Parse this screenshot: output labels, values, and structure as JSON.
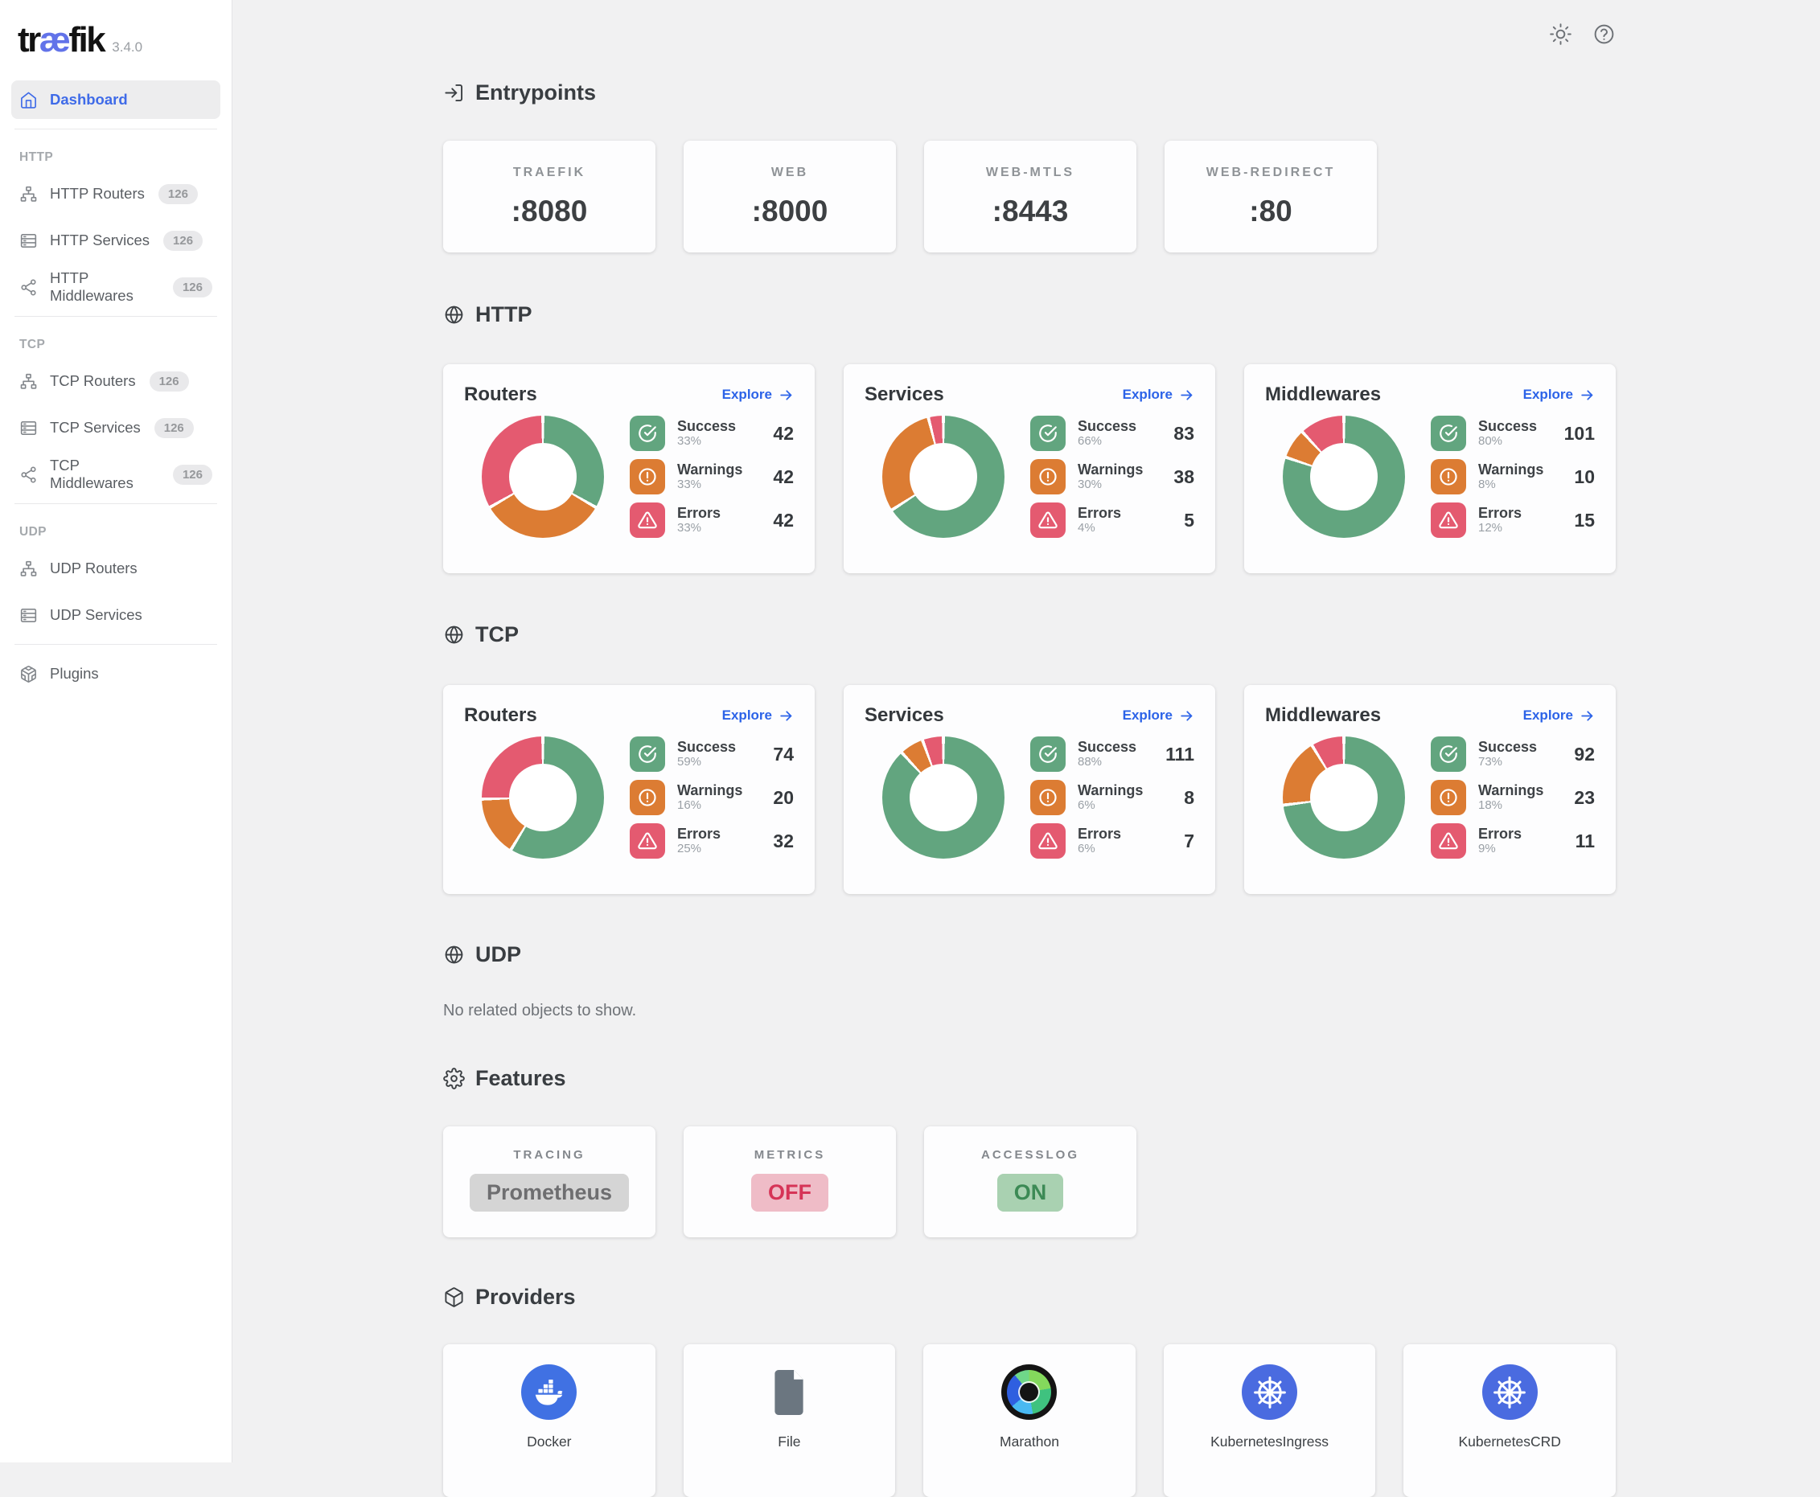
{
  "app": {
    "logo_pre": "tr",
    "logo_ae": "æ",
    "logo_post": "fik",
    "version": "3.4.0"
  },
  "topbar": {
    "theme_icon": "sun-icon",
    "help_icon": "help-icon"
  },
  "labels": {
    "explore": "Explore"
  },
  "sidebar": {
    "dashboard_label": "Dashboard",
    "plugins_label": "Plugins",
    "sections": [
      {
        "label": "HTTP",
        "items": [
          {
            "id": "http-routers",
            "icon": "routers",
            "label": "HTTP Routers",
            "badge": "126"
          },
          {
            "id": "http-services",
            "icon": "services",
            "label": "HTTP Services",
            "badge": "126"
          },
          {
            "id": "http-middlewares",
            "icon": "middlewares",
            "label": "HTTP Middlewares",
            "badge": "126"
          }
        ]
      },
      {
        "label": "TCP",
        "items": [
          {
            "id": "tcp-routers",
            "icon": "routers",
            "label": "TCP Routers",
            "badge": "126"
          },
          {
            "id": "tcp-services",
            "icon": "services",
            "label": "TCP Services",
            "badge": "126"
          },
          {
            "id": "tcp-middlewares",
            "icon": "middlewares",
            "label": "TCP Middlewares",
            "badge": "126"
          }
        ]
      },
      {
        "label": "UDP",
        "items": [
          {
            "id": "udp-routers",
            "icon": "routers",
            "label": "UDP Routers",
            "badge": ""
          },
          {
            "id": "udp-services",
            "icon": "services",
            "label": "UDP Services",
            "badge": ""
          }
        ]
      }
    ]
  },
  "entrypoints": {
    "title": "Entrypoints",
    "cards": [
      {
        "label": "TRAEFIK",
        "port": ":8080"
      },
      {
        "label": "WEB",
        "port": ":8000"
      },
      {
        "label": "WEB-MTLS",
        "port": ":8443"
      },
      {
        "label": "WEB-REDIRECT",
        "port": ":80"
      }
    ]
  },
  "http_section": {
    "title": "HTTP",
    "cards": [
      {
        "title": "Routers",
        "chart": 0
      },
      {
        "title": "Services",
        "chart": 1
      },
      {
        "title": "Middlewares",
        "chart": 2
      }
    ]
  },
  "tcp_section": {
    "title": "TCP",
    "cards": [
      {
        "title": "Routers",
        "chart": 3
      },
      {
        "title": "Services",
        "chart": 4
      },
      {
        "title": "Middlewares",
        "chart": 5
      }
    ]
  },
  "udp_section": {
    "title": "UDP",
    "empty": "No related objects to show."
  },
  "features": {
    "title": "Features",
    "cards": [
      {
        "label": "TRACING",
        "value": "Prometheus",
        "state": "neutral"
      },
      {
        "label": "METRICS",
        "value": "OFF",
        "state": "off"
      },
      {
        "label": "ACCESSLOG",
        "value": "ON",
        "state": "on"
      }
    ]
  },
  "providers": {
    "title": "Providers",
    "cards": [
      {
        "label": "Docker",
        "icon": "docker"
      },
      {
        "label": "File",
        "icon": "file"
      },
      {
        "label": "Marathon",
        "icon": "marathon"
      },
      {
        "label": "KubernetesIngress",
        "icon": "kubernetes"
      },
      {
        "label": "KubernetesCRD",
        "icon": "kubernetes"
      }
    ]
  },
  "colors": {
    "success": "#62a57f",
    "warning": "#dc7c33",
    "error": "#e45a70",
    "accent_blue": "#2c63e8",
    "logo_blue": "#6273e9"
  },
  "chart_data": [
    {
      "type": "pie",
      "title": "HTTP Routers",
      "categories": [
        "Success",
        "Warnings",
        "Errors"
      ],
      "values": [
        42,
        42,
        42
      ],
      "percents": [
        "33%",
        "33%",
        "33%"
      ],
      "total": 126,
      "legend_position": "right"
    },
    {
      "type": "pie",
      "title": "HTTP Services",
      "categories": [
        "Success",
        "Warnings",
        "Errors"
      ],
      "values": [
        83,
        38,
        5
      ],
      "percents": [
        "66%",
        "30%",
        "4%"
      ],
      "total": 126,
      "legend_position": "right"
    },
    {
      "type": "pie",
      "title": "HTTP Middlewares",
      "categories": [
        "Success",
        "Warnings",
        "Errors"
      ],
      "values": [
        101,
        10,
        15
      ],
      "percents": [
        "80%",
        "8%",
        "12%"
      ],
      "total": 126,
      "legend_position": "right"
    },
    {
      "type": "pie",
      "title": "TCP Routers",
      "categories": [
        "Success",
        "Warnings",
        "Errors"
      ],
      "values": [
        74,
        20,
        32
      ],
      "percents": [
        "59%",
        "16%",
        "25%"
      ],
      "total": 126,
      "legend_position": "right"
    },
    {
      "type": "pie",
      "title": "TCP Services",
      "categories": [
        "Success",
        "Warnings",
        "Errors"
      ],
      "values": [
        111,
        8,
        7
      ],
      "percents": [
        "88%",
        "6%",
        "6%"
      ],
      "total": 126,
      "legend_position": "right"
    },
    {
      "type": "pie",
      "title": "TCP Middlewares",
      "categories": [
        "Success",
        "Warnings",
        "Errors"
      ],
      "values": [
        92,
        23,
        11
      ],
      "percents": [
        "73%",
        "18%",
        "9%"
      ],
      "total": 126,
      "legend_position": "right"
    }
  ]
}
